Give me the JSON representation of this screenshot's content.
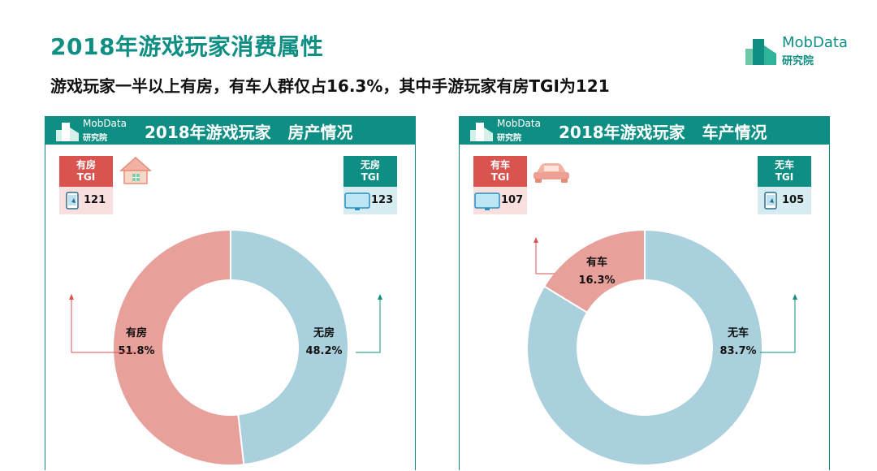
{
  "header": {
    "title": "2018年游戏玩家消费属性",
    "subtitle": "游戏玩家一半以上有房，有车人群仅占16.3%，其中手游玩家有房TGI为121"
  },
  "brand": {
    "name": "MobData",
    "sub": "研究院"
  },
  "colors": {
    "accent": "#0f8f84",
    "pink": "#e8a09b",
    "blue": "#a9d0dc",
    "red": "#d9534f"
  },
  "panels": [
    {
      "title": "2018年游戏玩家   房产情况",
      "tgi_left": {
        "line1": "有房",
        "line2": "TGI",
        "value": "121",
        "icon": "mobile-phone-icon",
        "picture": "house-icon"
      },
      "tgi_right": {
        "line1": "无房",
        "line2": "TGI",
        "value": "123",
        "icon": "monitor-icon"
      }
    },
    {
      "title": "2018年游戏玩家   车产情况",
      "tgi_left": {
        "line1": "有车",
        "line2": "TGI",
        "value": "107",
        "icon": "monitor-icon",
        "picture": "car-icon"
      },
      "tgi_right": {
        "line1": "无车",
        "line2": "TGI",
        "value": "105",
        "icon": "mobile-phone-icon"
      }
    }
  ],
  "chart_data": [
    {
      "type": "pie",
      "title": "2018年游戏玩家 房产情况",
      "categories": [
        "有房",
        "无房"
      ],
      "values": [
        51.8,
        48.2
      ],
      "labels": [
        "51.8%",
        "48.2%"
      ],
      "colors": [
        "#e8a09b",
        "#a9d0dc"
      ]
    },
    {
      "type": "pie",
      "title": "2018年游戏玩家 车产情况",
      "categories": [
        "有车",
        "无车"
      ],
      "values": [
        16.3,
        83.7
      ],
      "labels": [
        "16.3%",
        "83.7%"
      ],
      "colors": [
        "#e8a09b",
        "#a9d0dc"
      ]
    }
  ]
}
